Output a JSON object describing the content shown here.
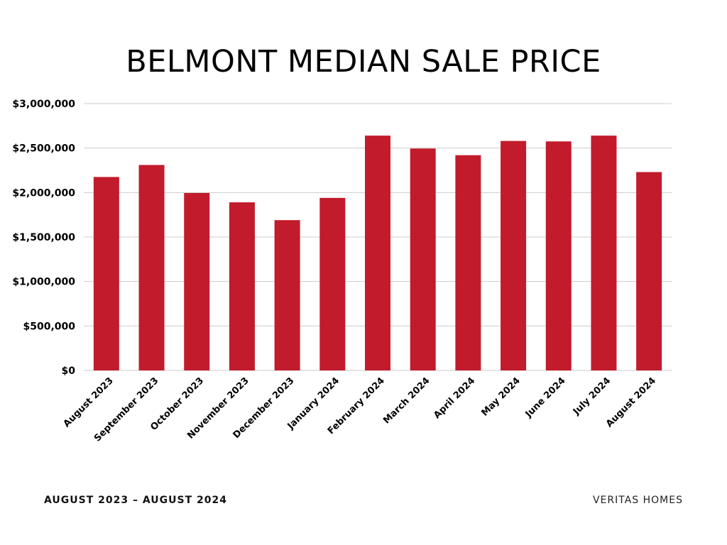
{
  "page": {
    "title": "BELMONT MEDIAN SALE PRICE",
    "footer_left": "AUGUST 2023 – AUGUST 2024",
    "footer_right": "VERITAS HOMES"
  },
  "colors": {
    "bar": "#c21b2c",
    "grid": "#cccccc",
    "text": "#000000"
  },
  "chart_data": {
    "type": "bar",
    "title": "BELMONT MEDIAN SALE PRICE",
    "xlabel": "",
    "ylabel": "",
    "ylim": [
      0,
      3000000
    ],
    "yticks": [
      0,
      500000,
      1000000,
      1500000,
      2000000,
      2500000,
      3000000
    ],
    "ytick_labels": [
      "$0",
      "$500,000",
      "$1,000,000",
      "$1,500,000",
      "$2,000,000",
      "$2,500,000",
      "$3,000,000"
    ],
    "grid": true,
    "categories": [
      "August 2023",
      "September 2023",
      "October 2023",
      "November 2023",
      "December 2023",
      "January 2024",
      "February 2024",
      "March 2024",
      "April 2024",
      "May 2024",
      "June 2024",
      "July 2024",
      "August 2024"
    ],
    "values": [
      2175000,
      2310000,
      1995000,
      1890000,
      1690000,
      1940000,
      2640000,
      2495000,
      2420000,
      2580000,
      2575000,
      2640000,
      2230000
    ]
  }
}
